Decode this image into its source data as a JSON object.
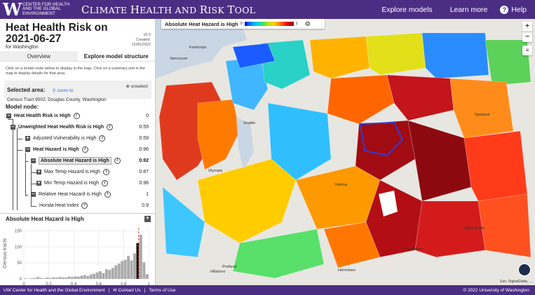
{
  "topbar": {
    "org_name": "CENTER FOR HEALTH AND THE GLOBAL ENVIRONMENT",
    "tool_title_parts": [
      "C",
      "LIMATE ",
      "H",
      "EALTH AND ",
      "R",
      "ISK ",
      "T",
      "OOL"
    ],
    "nav": {
      "explore_models": "Explore models",
      "learn_more": "Learn more",
      "help": "Help"
    },
    "logo_letter": "W",
    "help_glyph": "?"
  },
  "left_panel": {
    "title": "Heat Health Risk on 2021-06-27",
    "for_state": "for Washington",
    "version": "v5.0",
    "created_label": "Created:",
    "created_date": "12/05/2022",
    "tabs": [
      {
        "label": "Overview",
        "active": false
      },
      {
        "label": "Explore model structure",
        "active": true
      }
    ],
    "instructions": "Click on a model node below to display in the map. Click on a summary unit in the map to display details for that area.",
    "selected_area": {
      "label": "Selected area:",
      "zoom_to": "zoom to",
      "unselect": "unselect",
      "tract": "Census Tract 9502, Douglas County, Washington"
    },
    "model_node_label": "Model node:",
    "tree": [
      {
        "label": "Heat Health Risk is High",
        "value": "0",
        "level": 0,
        "toggle": "−",
        "bold": true
      },
      {
        "label": "Unweighted Heat Health Risk is High",
        "value": "0.59",
        "level": 1,
        "toggle": "−",
        "bold": true
      },
      {
        "label": "Adjusted Vulnerability is High",
        "value": "0.59",
        "level": 2,
        "toggle": "+",
        "bold": false
      },
      {
        "label": "Heat Hazard is High",
        "value": "0.96",
        "level": 2,
        "toggle": "−",
        "bold": true
      },
      {
        "label": "Absolute Heat Hazard is High",
        "value": "0.92",
        "level": 3,
        "toggle": "−",
        "bold": true,
        "highlight": true
      },
      {
        "label": "Max Temp Hazard is High",
        "value": "0.87",
        "level": 4,
        "toggle": "+",
        "bold": false
      },
      {
        "label": "Min Temp Hazard is High",
        "value": "0.96",
        "level": 4,
        "toggle": "+",
        "bold": false
      },
      {
        "label": "Relative Heat Hazard is High",
        "value": "1",
        "level": 3,
        "toggle": "−",
        "bold": false
      },
      {
        "label": "Honda Heat Index",
        "value": "0.9",
        "level": 4,
        "toggle": "",
        "bold": false
      }
    ],
    "info_glyph": "i"
  },
  "chart_data": {
    "type": "bar",
    "title": "Absolute Heat Hazard is High",
    "ylabel": "Census tracts",
    "xlabel": "",
    "xlim": [
      0,
      1
    ],
    "ylim": [
      0,
      160
    ],
    "xticks": [
      "0",
      "0.2",
      "0.4",
      "0.6",
      "0.8",
      "1"
    ],
    "yticks": [
      "0",
      "50",
      "100",
      "150"
    ],
    "bin_width": 0.025,
    "values": [
      2,
      1,
      2,
      3,
      6,
      3,
      2,
      4,
      3,
      5,
      4,
      6,
      5,
      4,
      7,
      6,
      8,
      7,
      10,
      12,
      9,
      14,
      16,
      20,
      24,
      18,
      30,
      28,
      34,
      42,
      48,
      56,
      60,
      72,
      58,
      80,
      112,
      138,
      52,
      15
    ],
    "selected_bin_index": 36,
    "marker_value": 0.92,
    "colors": {
      "bars": "#aaaaaa",
      "selected": "#000000",
      "marker": "#e53935"
    }
  },
  "map": {
    "legend": {
      "title": "Absolute Heat Hazard is High",
      "min": "0",
      "max": "1"
    },
    "labels": [
      "Kamloops",
      "Vancouver",
      "Spokane",
      "Seattle",
      "Olympia",
      "Yakima",
      "Walla Walla",
      "Pendleton",
      "Portland",
      "Hillsboro",
      "Hermiston"
    ],
    "attribution": "Esri, DigitalGlobe, ...",
    "controls": {
      "zoom_in": "+",
      "zoom_out": "−",
      "gear": "⚙",
      "layers": "≡"
    }
  },
  "footer": {
    "org": "UW Center for Health and the Global Environment",
    "contact": "✉ Contact Us",
    "terms": "Terms of Use",
    "copyright": "© 2022 University of Washington",
    "separator": "|"
  },
  "icons": {
    "zoom": "search-icon",
    "unselect": "close-circle-icon",
    "help": "question-icon",
    "gear": "gear-icon",
    "layers": "layers-icon"
  }
}
